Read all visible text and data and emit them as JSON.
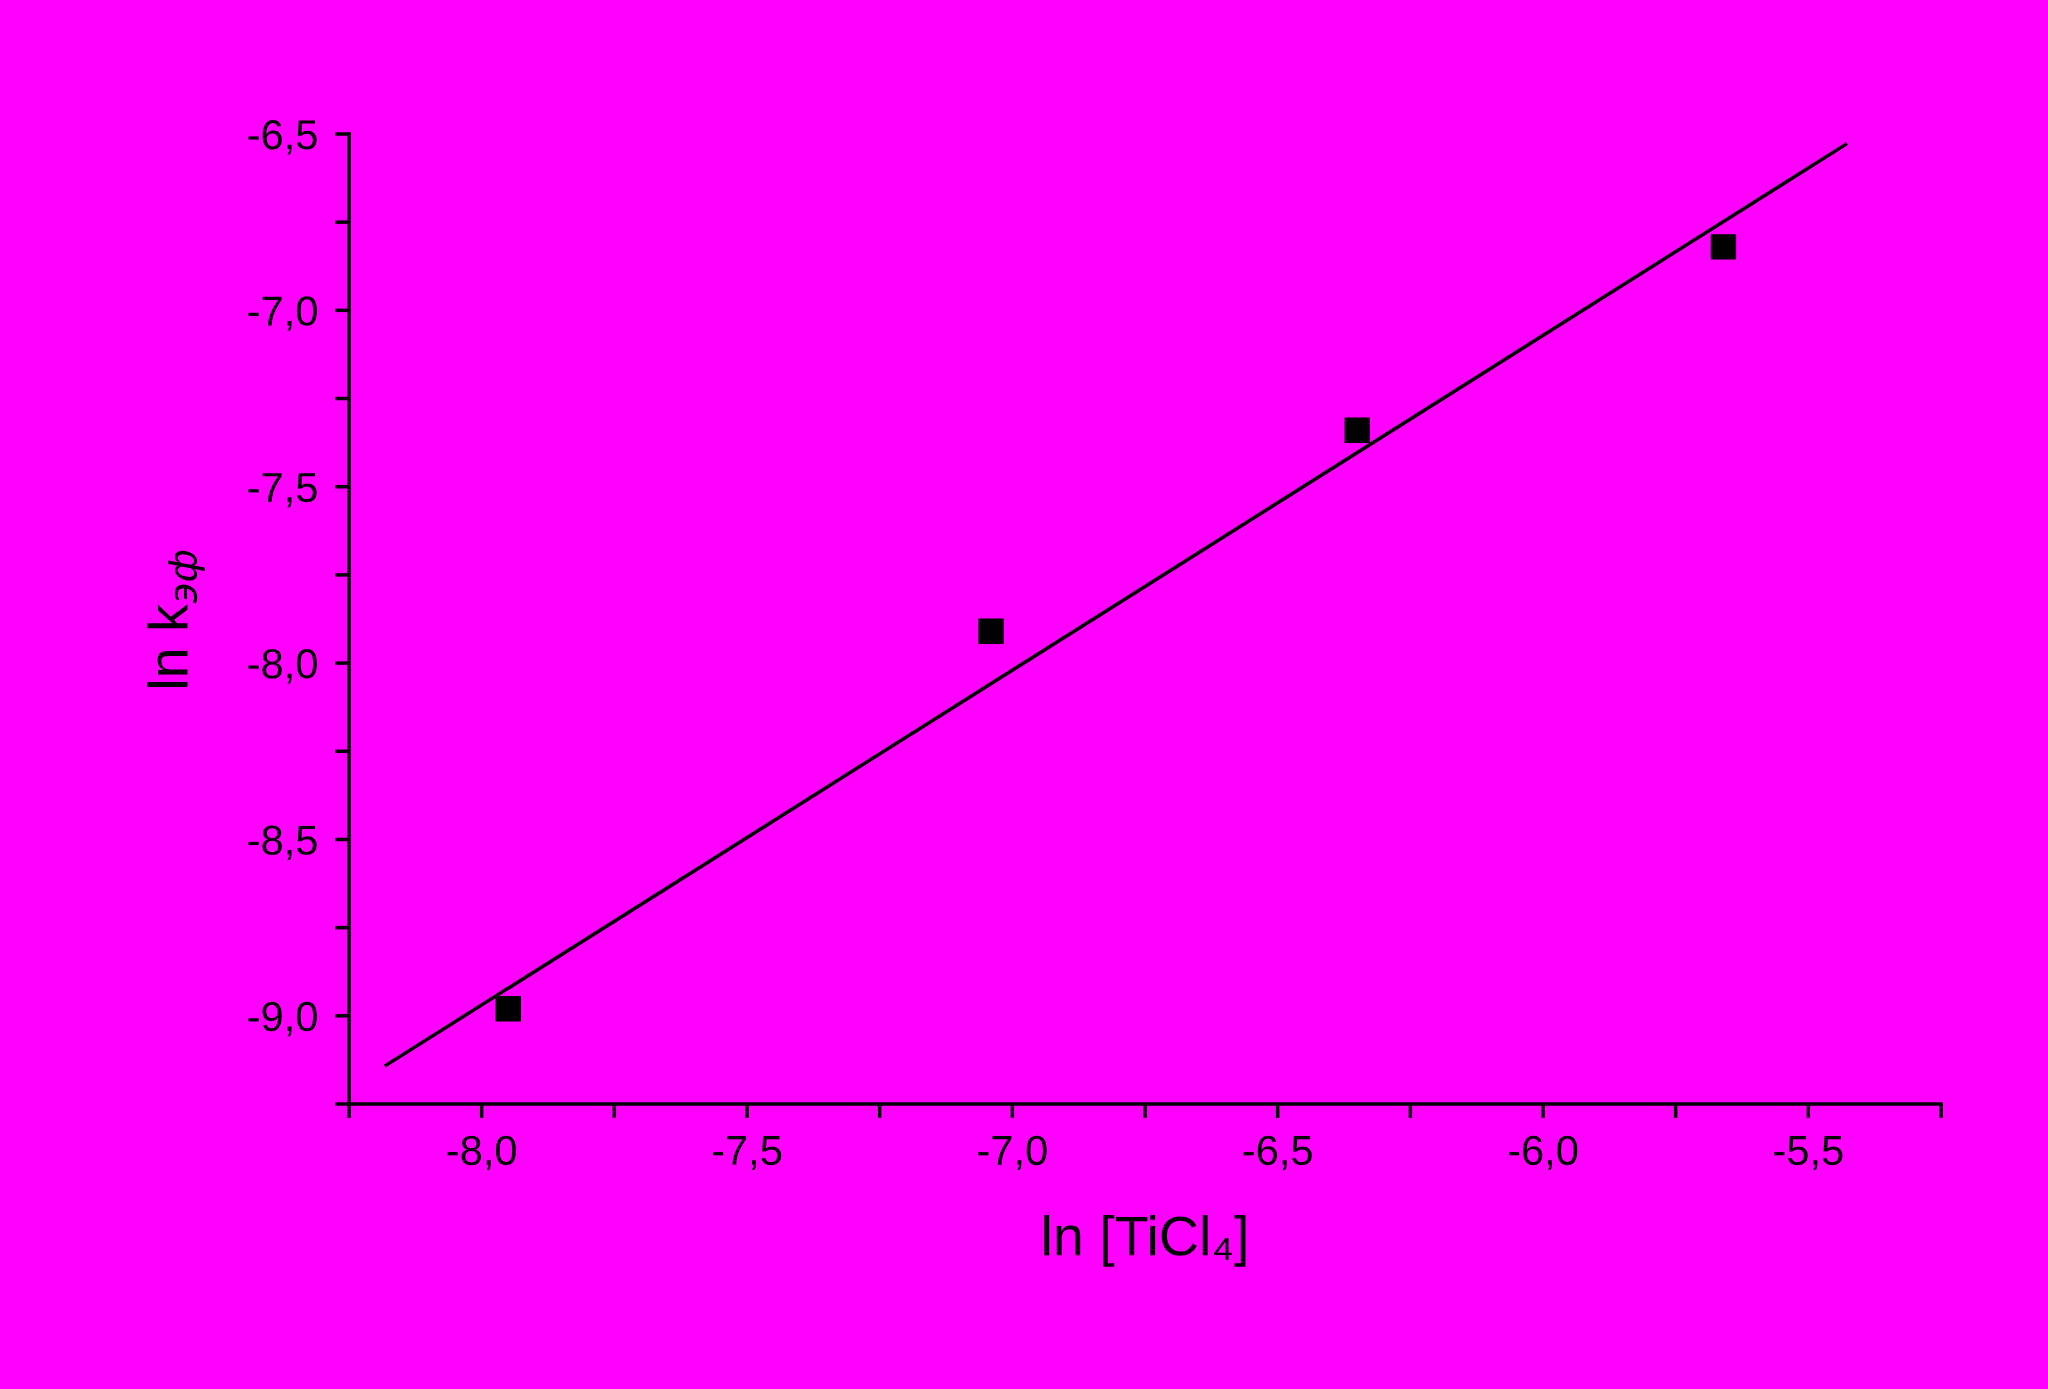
{
  "chart_data": {
    "type": "scatter",
    "xlabel": "ln [TiCl₄]",
    "ylabel": "ln k$_{эф}$",
    "series": [
      {
        "color": "#000000",
        "marker": "square",
        "x": [
          -7.95,
          -7.04,
          -6.35,
          -5.66
        ],
        "values": [
          -8.98,
          -7.91,
          -7.34,
          -6.82
        ]
      },
      {
        "type": "line",
        "color": "#000000",
        "marker": "none",
        "line_style": "solid",
        "x": [
          -8.18,
          -5.43
        ],
        "values": [
          -9.14,
          -6.53
        ]
      }
    ],
    "xlim": [
      -8.25,
      -5.25
    ],
    "ylim": [
      -9.25,
      -6.5
    ],
    "xticks": [
      {
        "value": -8.25,
        "label": null
      },
      {
        "value": -8.0,
        "label": "-8,0"
      },
      {
        "value": -7.75,
        "label": null
      },
      {
        "value": -7.5,
        "label": "-7,5"
      },
      {
        "value": -7.25,
        "label": null
      },
      {
        "value": -7.0,
        "label": "-7,0"
      },
      {
        "value": -6.75,
        "label": null
      },
      {
        "value": -6.5,
        "label": "-6,5"
      },
      {
        "value": -6.25,
        "label": null
      },
      {
        "value": -6.0,
        "label": "-6,0"
      },
      {
        "value": -5.75,
        "label": null
      },
      {
        "value": -5.5,
        "label": "-5,5"
      },
      {
        "value": -5.25,
        "label": null
      }
    ],
    "yticks": [
      {
        "value": -9.25,
        "label": null
      },
      {
        "value": -9.0,
        "label": "-9,0"
      },
      {
        "value": -8.75,
        "label": null
      },
      {
        "value": -8.5,
        "label": "-8,5"
      },
      {
        "value": -8.25,
        "label": null
      },
      {
        "value": -8.0,
        "label": "-8,0"
      },
      {
        "value": -7.75,
        "label": null
      },
      {
        "value": -7.5,
        "label": "-7,5"
      },
      {
        "value": -7.25,
        "label": null
      },
      {
        "value": -7.0,
        "label": "-7,0"
      },
      {
        "value": -6.75,
        "label": null
      },
      {
        "value": -6.5,
        "label": "-6,5"
      }
    ],
    "grid": false,
    "legend": false
  }
}
